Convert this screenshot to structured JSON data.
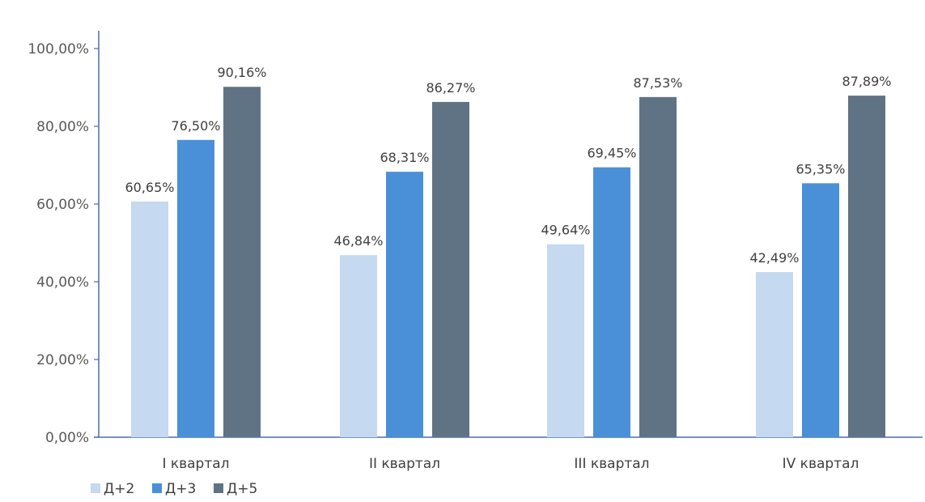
{
  "chart_data": {
    "type": "bar",
    "categories": [
      "I квартал",
      "II квартал",
      "III квартал",
      "IV квартал"
    ],
    "series": [
      {
        "name": "Д+2",
        "values": [
          60.65,
          46.84,
          49.64,
          42.49
        ],
        "labels": [
          "60,65%",
          "46,84%",
          "49,64%",
          "42,49%"
        ],
        "color": "#c5d9f0"
      },
      {
        "name": "Д+3",
        "values": [
          76.5,
          68.31,
          69.45,
          65.35
        ],
        "labels": [
          "76,50%",
          "68,31%",
          "69,45%",
          "65,35%"
        ],
        "color": "#4a90d9"
      },
      {
        "name": "Д+5",
        "values": [
          90.16,
          86.27,
          87.53,
          87.89
        ],
        "labels": [
          "90,16%",
          "86,27%",
          "87,53%",
          "87,89%"
        ],
        "color": "#5f7384"
      }
    ],
    "yticks": [
      0,
      20,
      40,
      60,
      80,
      100
    ],
    "ytick_labels": [
      "0,00%",
      "20,00%",
      "40,00%",
      "60,00%",
      "80,00%",
      "100,00%"
    ],
    "ylim": [
      0,
      100
    ],
    "grid": false,
    "legend": "bottom-left"
  }
}
